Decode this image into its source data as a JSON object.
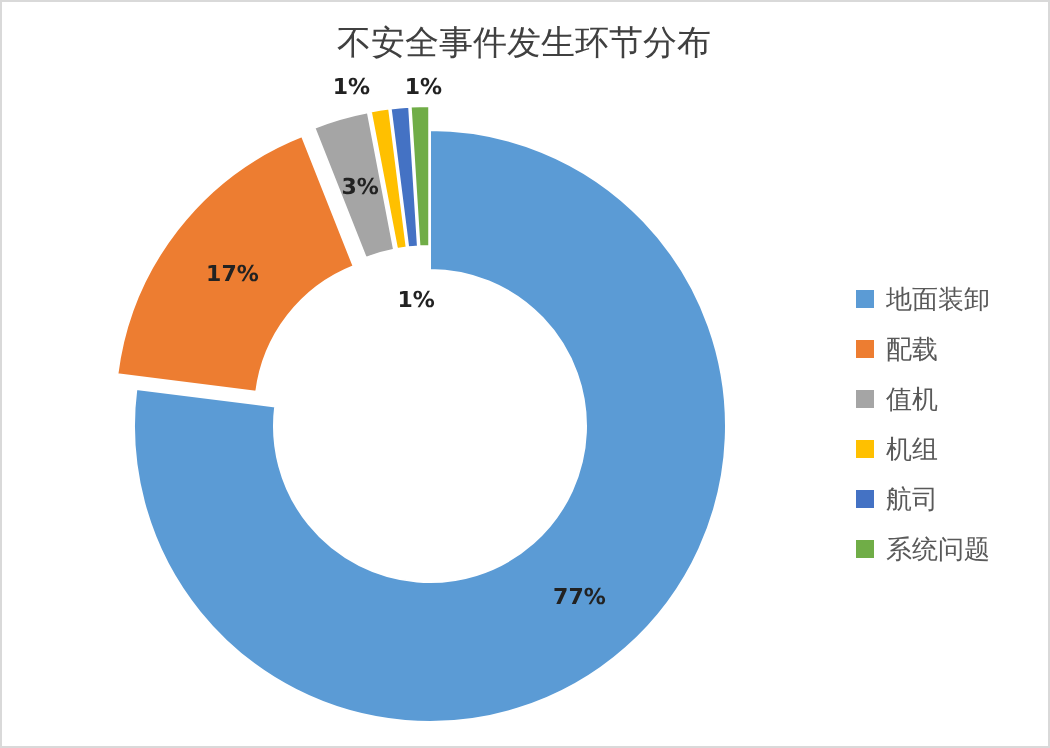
{
  "chart_data": {
    "type": "donut",
    "title": "不安全事件发生环节分布",
    "categories": [
      "地面装卸",
      "配载",
      "值机",
      "机组",
      "航司",
      "系统问题"
    ],
    "values": [
      77,
      17,
      3,
      1,
      1,
      1
    ],
    "colors": [
      "#5b9bd5",
      "#ed7d31",
      "#a5a5a5",
      "#ffc000",
      "#4472c4",
      "#70ad47"
    ],
    "value_labels": [
      "77%",
      "17%",
      "3%",
      "1%",
      "1%",
      "1%"
    ],
    "legend": "right"
  }
}
